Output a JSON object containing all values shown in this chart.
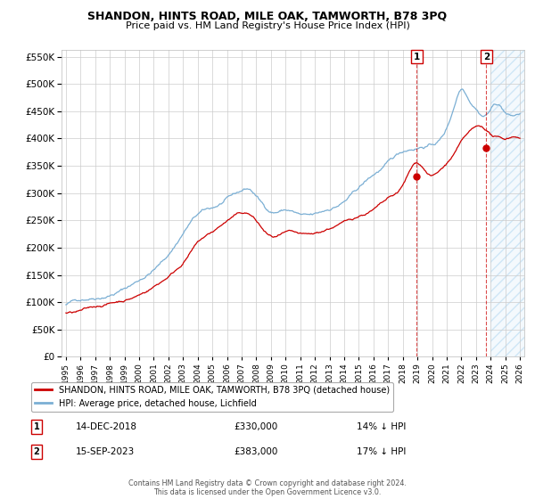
{
  "title": "SHANDON, HINTS ROAD, MILE OAK, TAMWORTH, B78 3PQ",
  "subtitle": "Price paid vs. HM Land Registry's House Price Index (HPI)",
  "legend_label_red": "SHANDON, HINTS ROAD, MILE OAK, TAMWORTH, B78 3PQ (detached house)",
  "legend_label_blue": "HPI: Average price, detached house, Lichfield",
  "sale1_label": "14-DEC-2018",
  "sale1_price": "£330,000",
  "sale1_hpi": "14% ↓ HPI",
  "sale2_label": "15-SEP-2023",
  "sale2_price": "£383,000",
  "sale2_hpi": "17% ↓ HPI",
  "footer": "Contains HM Land Registry data © Crown copyright and database right 2024.\nThis data is licensed under the Open Government Licence v3.0.",
  "ylim": [
    0,
    562500
  ],
  "xlim_start": 1994.7,
  "xlim_end": 2026.3,
  "hatch_start": 2024.0,
  "sale1_x": 2018.96,
  "sale2_x": 2023.71,
  "sale1_y": 330000,
  "sale2_y": 383000,
  "red_color": "#cc0000",
  "blue_color": "#7bafd4",
  "background_color": "#ffffff",
  "grid_color": "#cccccc",
  "yticks": [
    0,
    50000,
    100000,
    150000,
    200000,
    250000,
    300000,
    350000,
    400000,
    450000,
    500000,
    550000
  ]
}
